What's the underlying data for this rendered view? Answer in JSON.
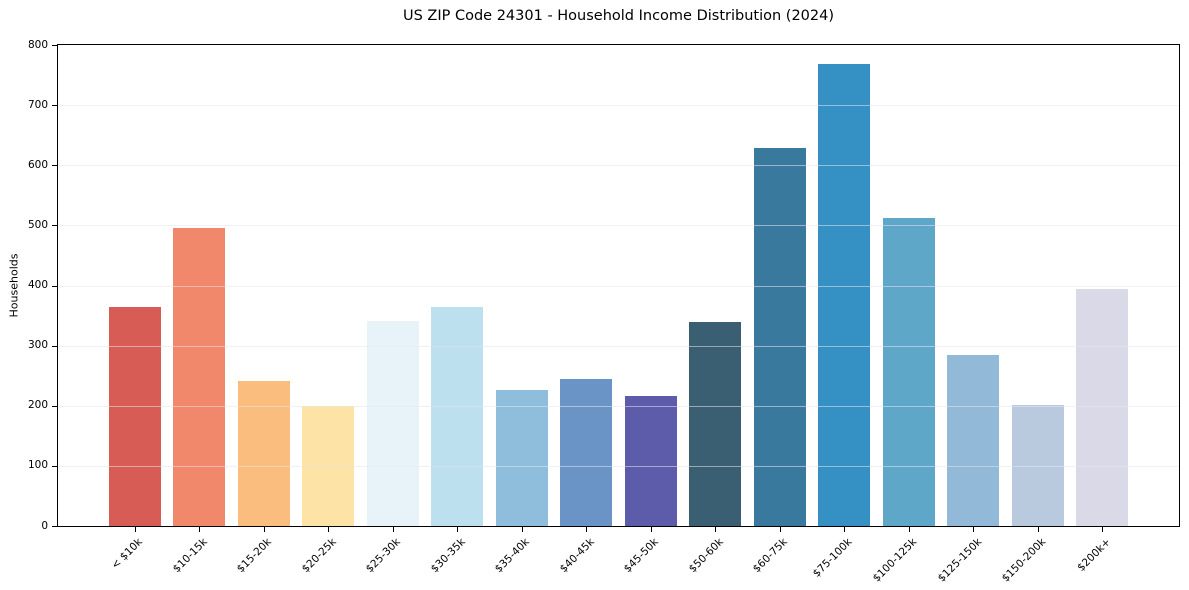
{
  "chart_data": {
    "type": "bar",
    "title": "US ZIP Code 24301 - Household Income Distribution (2024)",
    "xlabel": "",
    "ylabel": "Households",
    "categories": [
      "< $10k",
      "$10-15k",
      "$15-20k",
      "$20-25k",
      "$25-30k",
      "$30-35k",
      "$35-40k",
      "$40-45k",
      "$45-50k",
      "$50-60k",
      "$60-75k",
      "$75-100k",
      "$100-125k",
      "$125-150k",
      "$150-200k",
      "$200k+"
    ],
    "values": [
      365,
      495,
      242,
      200,
      341,
      365,
      227,
      245,
      216,
      340,
      628,
      768,
      512,
      284,
      201,
      395
    ],
    "bar_colors": [
      "#d65c55",
      "#f1886c",
      "#fabd7d",
      "#fde3a6",
      "#e7f3f8",
      "#bce0ee",
      "#8fbedd",
      "#6b94c6",
      "#5d5cab",
      "#3a5e72",
      "#38799d",
      "#3590c4",
      "#5ea7c9",
      "#92b9d8",
      "#b9c9de",
      "#d9d9e8"
    ],
    "ylim": [
      0,
      800
    ],
    "yticks": [
      0,
      100,
      200,
      300,
      400,
      500,
      600,
      700,
      800
    ],
    "bar_slot_fraction": 0.8,
    "x_axis_range": [
      -1.19,
      16.19
    ],
    "grid": "horizontal",
    "legend": "none",
    "x_tick_rotation_deg": 45
  },
  "colors": {
    "background": "#ffffff",
    "spine": "#000000",
    "gridline": "#e9e9ed",
    "gridline_over_bars": "rgba(230,230,236,0.55)",
    "text": "#000000"
  }
}
